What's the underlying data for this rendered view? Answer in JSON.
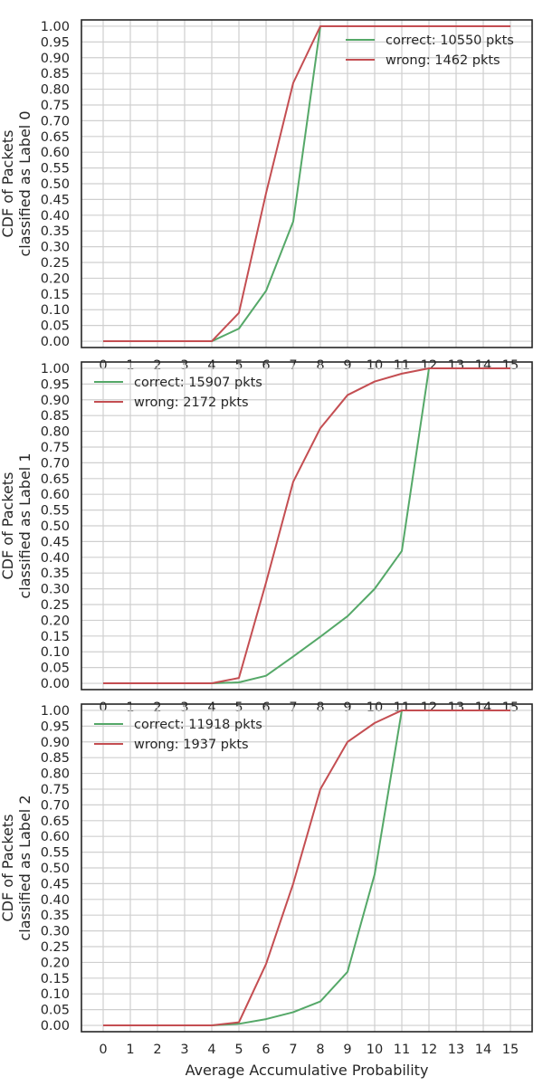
{
  "colors": {
    "correct": "#55a868",
    "wrong": "#c44e52",
    "grid": "#cfcfcf",
    "frame": "#262626",
    "text": "#262626"
  },
  "chart_data": [
    {
      "type": "line",
      "ylabel": [
        "CDF of Packets",
        "classified as Label 0"
      ],
      "xlabel": "",
      "x": [
        0,
        1,
        2,
        3,
        4,
        5,
        6,
        7,
        8,
        9,
        10,
        11,
        12,
        13,
        14,
        15
      ],
      "xlim": [
        -0.8,
        15.8
      ],
      "ylim": [
        -0.02,
        1.02
      ],
      "yticks": [
        "0.00",
        "0.05",
        "0.10",
        "0.15",
        "0.20",
        "0.25",
        "0.30",
        "0.35",
        "0.40",
        "0.45",
        "0.50",
        "0.55",
        "0.60",
        "0.65",
        "0.70",
        "0.75",
        "0.80",
        "0.85",
        "0.90",
        "0.95",
        "1.00"
      ],
      "grid": true,
      "legend_position": "top-right",
      "series": [
        {
          "name": "correct: 10550 pkts",
          "color": "correct",
          "values": [
            0,
            0,
            0,
            0,
            0,
            0.04,
            0.16,
            0.38,
            1,
            1,
            1,
            1,
            1,
            1,
            1,
            1
          ]
        },
        {
          "name": "wrong: 1462 pkts",
          "color": "wrong",
          "values": [
            0,
            0,
            0,
            0,
            0,
            0.09,
            0.47,
            0.82,
            1,
            1,
            1,
            1,
            1,
            1,
            1,
            1
          ]
        }
      ]
    },
    {
      "type": "line",
      "ylabel": [
        "CDF of Packets",
        "classified as Label 1"
      ],
      "xlabel": "",
      "x": [
        0,
        1,
        2,
        3,
        4,
        5,
        6,
        7,
        8,
        9,
        10,
        11,
        12,
        13,
        14,
        15
      ],
      "xlim": [
        -0.8,
        15.8
      ],
      "ylim": [
        -0.02,
        1.02
      ],
      "yticks": [
        "0.00",
        "0.05",
        "0.10",
        "0.15",
        "0.20",
        "0.25",
        "0.30",
        "0.35",
        "0.40",
        "0.45",
        "0.50",
        "0.55",
        "0.60",
        "0.65",
        "0.70",
        "0.75",
        "0.80",
        "0.85",
        "0.90",
        "0.95",
        "1.00"
      ],
      "grid": true,
      "legend_position": "top-left",
      "series": [
        {
          "name": "correct: 15907 pkts",
          "color": "correct",
          "values": [
            0,
            0,
            0,
            0,
            0,
            0.003,
            0.024,
            0.085,
            0.148,
            0.213,
            0.3,
            0.42,
            1,
            1,
            1,
            1
          ]
        },
        {
          "name": "wrong: 2172 pkts",
          "color": "wrong",
          "values": [
            0,
            0,
            0,
            0,
            0,
            0.017,
            0.32,
            0.64,
            0.81,
            0.915,
            0.958,
            0.983,
            1,
            1,
            1,
            1
          ]
        }
      ]
    },
    {
      "type": "line",
      "ylabel": [
        "CDF of Packets",
        "classified as Label 2"
      ],
      "xlabel": "Average Accumulative Probability",
      "x": [
        0,
        1,
        2,
        3,
        4,
        5,
        6,
        7,
        8,
        9,
        10,
        11,
        12,
        13,
        14,
        15
      ],
      "xlim": [
        -0.8,
        15.8
      ],
      "ylim": [
        -0.02,
        1.02
      ],
      "yticks": [
        "0.00",
        "0.05",
        "0.10",
        "0.15",
        "0.20",
        "0.25",
        "0.30",
        "0.35",
        "0.40",
        "0.45",
        "0.50",
        "0.55",
        "0.60",
        "0.65",
        "0.70",
        "0.75",
        "0.80",
        "0.85",
        "0.90",
        "0.95",
        "1.00"
      ],
      "grid": true,
      "legend_position": "top-left",
      "series": [
        {
          "name": "correct: 11918 pkts",
          "color": "correct",
          "values": [
            0,
            0,
            0,
            0,
            0,
            0.005,
            0.02,
            0.042,
            0.076,
            0.17,
            0.48,
            1,
            1,
            1,
            1,
            1
          ]
        },
        {
          "name": "wrong: 1937 pkts",
          "color": "wrong",
          "values": [
            0,
            0,
            0,
            0,
            0,
            0.01,
            0.195,
            0.45,
            0.75,
            0.9,
            0.96,
            1,
            1,
            1,
            1,
            1
          ]
        }
      ]
    }
  ]
}
